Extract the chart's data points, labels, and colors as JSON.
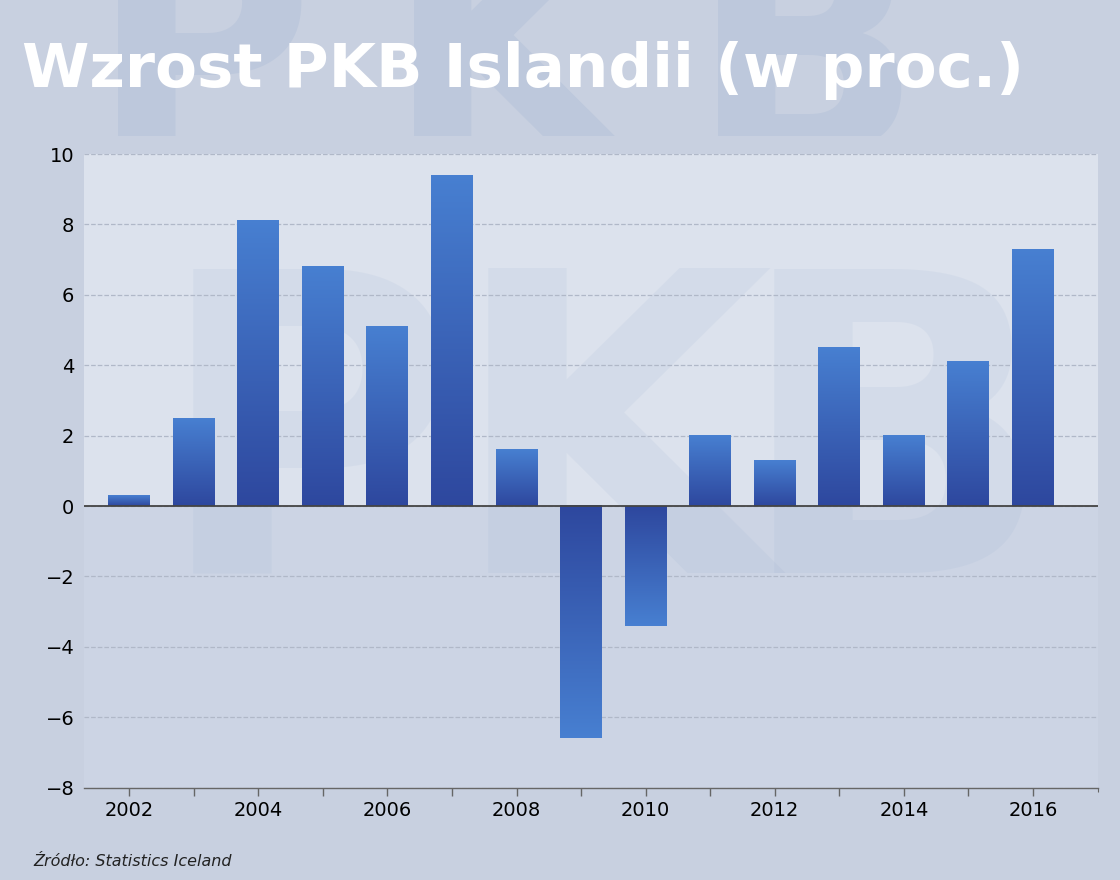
{
  "title": "Wzrost PKB Islandii (w proc.)",
  "title_bg_color": "#0c1a6e",
  "title_text_color": "#ffffff",
  "source_text": "Źródło: Statistics Iceland",
  "years": [
    2002,
    2003,
    2004,
    2005,
    2006,
    2007,
    2008,
    2009,
    2010,
    2011,
    2012,
    2013,
    2014,
    2015,
    2016
  ],
  "values": [
    0.3,
    2.5,
    8.1,
    6.8,
    5.1,
    9.4,
    1.6,
    -6.6,
    -3.4,
    2.0,
    1.3,
    4.5,
    2.0,
    4.1,
    7.3
  ],
  "ylim": [
    -8,
    10
  ],
  "yticks": [
    -8,
    -6,
    -4,
    -2,
    0,
    2,
    4,
    6,
    8,
    10
  ],
  "xtick_years": [
    2002,
    2004,
    2006,
    2008,
    2010,
    2012,
    2014,
    2016
  ],
  "bg_color_above": "#dce2ed",
  "bg_color_below": "#ccd4e4",
  "grid_color": "#b0b8c8",
  "fig_bg_color": "#c8d0e0",
  "bar_color_dark": [
    0.18,
    0.28,
    0.62,
    1.0
  ],
  "bar_color_light": [
    0.28,
    0.5,
    0.82,
    1.0
  ],
  "watermark_color": [
    0.55,
    0.65,
    0.8
  ],
  "watermark_alpha_title": 0.18,
  "watermark_alpha_chart": 0.1
}
